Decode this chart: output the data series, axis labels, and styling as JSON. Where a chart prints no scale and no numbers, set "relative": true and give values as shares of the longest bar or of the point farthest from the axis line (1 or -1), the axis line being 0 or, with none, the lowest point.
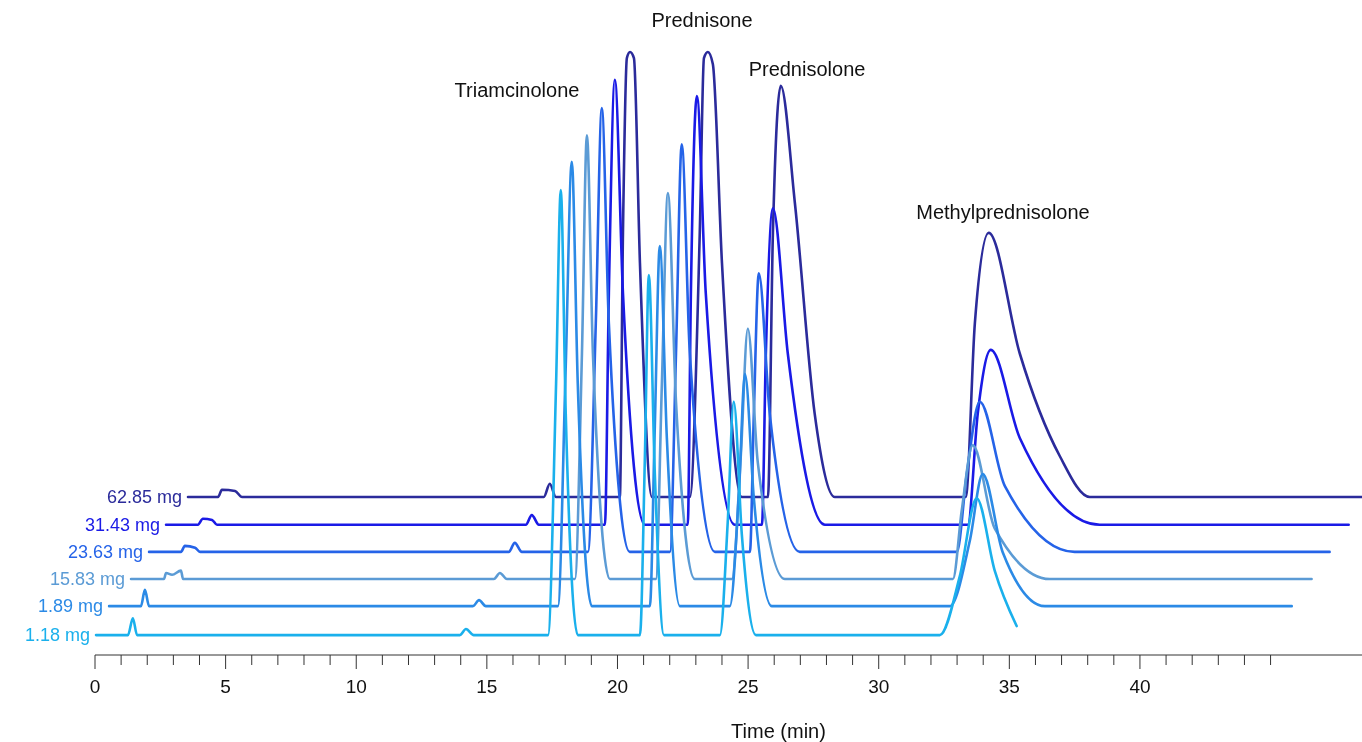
{
  "chart_data": {
    "type": "line",
    "relative": true,
    "xlabel": "Time (min)",
    "xlim": [
      0,
      48.5
    ],
    "xticks": [
      0,
      {
        "value": 1,
        "label": null
      },
      {
        "value": 2,
        "label": null
      },
      {
        "value": 3,
        "label": null
      },
      {
        "value": 4,
        "label": null
      },
      5,
      {
        "value": 6,
        "label": null
      },
      {
        "value": 7,
        "label": null
      },
      {
        "value": 8,
        "label": null
      },
      {
        "value": 9,
        "label": null
      },
      10,
      {
        "value": 11,
        "label": null
      },
      {
        "value": 12,
        "label": null
      },
      {
        "value": 13,
        "label": null
      },
      {
        "value": 14,
        "label": null
      },
      15,
      {
        "value": 16,
        "label": null
      },
      {
        "value": 17,
        "label": null
      },
      {
        "value": 18,
        "label": null
      },
      {
        "value": 19,
        "label": null
      },
      20,
      {
        "value": 21,
        "label": null
      },
      {
        "value": 22,
        "label": null
      },
      {
        "value": 23,
        "label": null
      },
      {
        "value": 24,
        "label": null
      },
      25,
      {
        "value": 26,
        "label": null
      },
      {
        "value": 27,
        "label": null
      },
      {
        "value": 28,
        "label": null
      },
      {
        "value": 29,
        "label": null
      },
      30,
      {
        "value": 31,
        "label": null
      },
      {
        "value": 32,
        "label": null
      },
      {
        "value": 33,
        "label": null
      },
      {
        "value": 34,
        "label": null
      },
      35,
      {
        "value": 36,
        "label": null
      },
      {
        "value": 37,
        "label": null
      },
      {
        "value": 38,
        "label": null
      },
      {
        "value": 39,
        "label": null
      },
      40,
      {
        "value": 41,
        "label": null
      },
      {
        "value": 42,
        "label": null
      },
      {
        "value": 43,
        "label": null
      },
      {
        "value": 44,
        "label": null
      },
      {
        "value": 45,
        "label": null
      }
    ],
    "marker": "none",
    "line_style": "solid",
    "annotations": [
      "Triamcinolone",
      "Prednisone",
      "Prednisolone",
      "Methylprednisolone"
    ],
    "series": [
      {
        "name": "62.85 mg",
        "color": "#2b2b9b",
        "x": [
          3.56,
          4.71,
          4.86,
          5.36,
          5.63,
          17.18,
          17.41,
          17.64,
          20.09,
          20.21,
          20.36,
          20.48,
          20.63,
          20.86,
          21.32,
          22.77,
          23.15,
          23.31,
          23.46,
          23.65,
          24.0,
          24.76,
          25.76,
          25.95,
          26.25,
          26.79,
          27.55,
          28.32,
          33.33,
          33.68,
          34.21,
          35.4,
          36.93,
          38.08,
          48.49
        ],
        "values": [
          0.262,
          0.262,
          0.274,
          0.272,
          0.262,
          0.262,
          0.284,
          0.262,
          0.262,
          0.7,
          0.99,
          1,
          0.99,
          0.65,
          0.262,
          0.262,
          0.7,
          0.99,
          1,
          0.98,
          0.65,
          0.262,
          0.262,
          0.7,
          0.944,
          0.75,
          0.4,
          0.262,
          0.262,
          0.55,
          0.7,
          0.5,
          0.33,
          0.262,
          0.262
        ]
      },
      {
        "name": "31.43 mg",
        "color": "#1a1ae6",
        "x": [
          2.72,
          3.94,
          4.13,
          4.48,
          4.67,
          16.49,
          16.72,
          16.99,
          19.52,
          19.67,
          19.9,
          20.21,
          21.05,
          22.69,
          22.81,
          23.04,
          23.38,
          24.49,
          25.53,
          25.68,
          25.95,
          26.52,
          27.94,
          33.41,
          33.79,
          34.29,
          35.4,
          38.46,
          47.99
        ],
        "values": [
          0.216,
          0.216,
          0.226,
          0.224,
          0.216,
          0.216,
          0.232,
          0.216,
          0.216,
          0.6,
          0.954,
          0.6,
          0.216,
          0.216,
          0.6,
          0.927,
          0.6,
          0.216,
          0.216,
          0.5,
          0.741,
          0.5,
          0.216,
          0.216,
          0.4,
          0.506,
          0.36,
          0.216,
          0.216
        ]
      },
      {
        "name": "23.63 mg",
        "color": "#2563e8",
        "x": [
          2.07,
          3.29,
          3.44,
          3.83,
          4.02,
          15.84,
          16.07,
          16.34,
          18.87,
          19.17,
          19.4,
          19.67,
          20.47,
          22.01,
          22.24,
          22.46,
          22.77,
          23.73,
          25.07,
          25.22,
          25.41,
          25.83,
          26.98,
          32.99,
          33.37,
          33.87,
          34.83,
          37.5,
          47.26
        ],
        "values": [
          0.171,
          0.171,
          0.181,
          0.178,
          0.171,
          0.171,
          0.186,
          0.171,
          0.171,
          0.55,
          0.907,
          0.55,
          0.171,
          0.171,
          0.5,
          0.847,
          0.5,
          0.171,
          0.171,
          0.4,
          0.633,
          0.4,
          0.171,
          0.171,
          0.3,
          0.42,
          0.28,
          0.171,
          0.171
        ]
      },
      {
        "name": "15.83 mg",
        "color": "#5b9bd5",
        "x": [
          1.38,
          2.64,
          2.72,
          2.95,
          3.29,
          3.37,
          15.27,
          15.5,
          15.77,
          18.37,
          18.64,
          18.83,
          19.06,
          19.71,
          21.47,
          21.7,
          21.93,
          22.24,
          22.96,
          24.38,
          24.72,
          24.99,
          25.37,
          26.41,
          32.84,
          33.18,
          33.6,
          34.44,
          36.55,
          46.57
        ],
        "values": [
          0.126,
          0.126,
          0.136,
          0.133,
          0.14,
          0.126,
          0.126,
          0.136,
          0.126,
          0.126,
          0.5,
          0.862,
          0.5,
          0.126,
          0.126,
          0.45,
          0.766,
          0.42,
          0.126,
          0.126,
          0.33,
          0.541,
          0.32,
          0.126,
          0.126,
          0.24,
          0.348,
          0.21,
          0.126,
          0.126
        ]
      },
      {
        "name": "1.89 mg",
        "color": "#2b8ae6",
        "x": [
          0.54,
          1.76,
          1.91,
          2.07,
          14.47,
          14.7,
          14.96,
          17.72,
          18.02,
          18.25,
          18.48,
          19.02,
          21.24,
          21.43,
          21.62,
          21.89,
          22.39,
          24.3,
          24.65,
          24.88,
          25.22,
          25.91,
          32.72,
          33.49,
          33.98,
          34.75,
          36.36,
          45.81
        ],
        "values": [
          0.081,
          0.081,
          0.108,
          0.081,
          0.081,
          0.091,
          0.081,
          0.081,
          0.48,
          0.818,
          0.45,
          0.081,
          0.081,
          0.38,
          0.678,
          0.36,
          0.081,
          0.081,
          0.27,
          0.466,
          0.26,
          0.081,
          0.081,
          0.19,
          0.3,
          0.17,
          0.081,
          0.081
        ]
      },
      {
        "name": "1.18 mg",
        "color": "#1ab0ec",
        "x": [
          0.04,
          1.26,
          1.45,
          1.61,
          13.97,
          14.2,
          14.5,
          17.34,
          17.65,
          17.83,
          18.02,
          18.48,
          20.86,
          21.05,
          21.2,
          21.43,
          21.78,
          23.92,
          24.22,
          24.45,
          24.76,
          25.3,
          32.34,
          33.1,
          33.75,
          34.44,
          35.28
        ],
        "values": [
          0.033,
          0.033,
          0.061,
          0.033,
          0.033,
          0.043,
          0.033,
          0.033,
          0.45,
          0.771,
          0.4,
          0.033,
          0.033,
          0.33,
          0.63,
          0.3,
          0.033,
          0.033,
          0.22,
          0.42,
          0.2,
          0.033,
          0.033,
          0.13,
          0.26,
          0.14,
          0.048
        ]
      }
    ]
  }
}
